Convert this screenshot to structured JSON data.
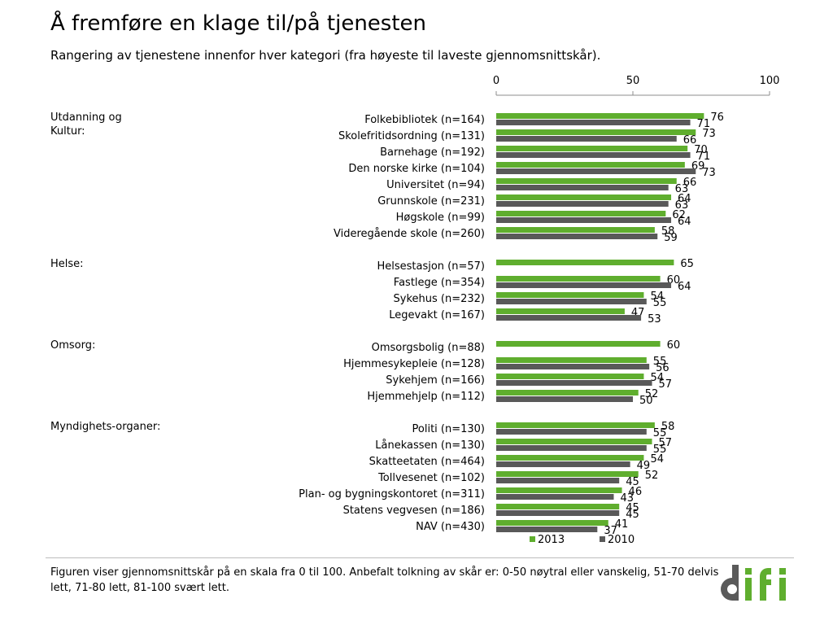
{
  "header": {
    "title": "Å fremføre en klage til/på tjenesten",
    "subtitle": "Rangering av tjenestene innenfor hver kategori (fra høyeste til laveste gjennomsnittskår)."
  },
  "footnote": "Figuren viser gjennomsnittskår på en skala fra 0 til 100. Anbefalt tolkning av skår er: 0-50 nøytral eller vanskelig, 51-70 delvis lett, 71-80 lett, 81-100 svært lett.",
  "logo": {
    "text": "difi",
    "colors": {
      "d": "#5a5a5a",
      "ifi": "#5fae2e"
    }
  },
  "colors": {
    "series_2013": "#5fae2e",
    "series_2010": "#595959"
  },
  "chart_data": {
    "type": "bar",
    "orientation": "horizontal",
    "xlim": [
      0,
      100
    ],
    "x_ticks": [
      0,
      50,
      100
    ],
    "grid": false,
    "legend": "bottom",
    "series": [
      {
        "name": "2013",
        "color": "#5fae2e"
      },
      {
        "name": "2010",
        "color": "#595959"
      }
    ],
    "groups": [
      {
        "label": "Utdanning og Kultur:",
        "items": [
          {
            "label": "Folkebibliotek (n=164)",
            "v2013": 76,
            "v2010": 71
          },
          {
            "label": "Skolefritidsordning (n=131)",
            "v2013": 73,
            "v2010": 66
          },
          {
            "label": "Barnehage (n=192)",
            "v2013": 70,
            "v2010": 71
          },
          {
            "label": "Den norske kirke (n=104)",
            "v2013": 69,
            "v2010": 73
          },
          {
            "label": "Universitet (n=94)",
            "v2013": 66,
            "v2010": 63
          },
          {
            "label": "Grunnskole (n=231)",
            "v2013": 64,
            "v2010": 63
          },
          {
            "label": "Høgskole (n=99)",
            "v2013": 62,
            "v2010": 64
          },
          {
            "label": "Videregående skole (n=260)",
            "v2013": 58,
            "v2010": 59
          }
        ]
      },
      {
        "label": "Helse:",
        "items": [
          {
            "label": "Helsestasjon (n=57)",
            "v2013": 65,
            "v2010": null
          },
          {
            "label": "Fastlege (n=354)",
            "v2013": 60,
            "v2010": 64
          },
          {
            "label": "Sykehus (n=232)",
            "v2013": 54,
            "v2010": 55
          },
          {
            "label": "Legevakt (n=167)",
            "v2013": 47,
            "v2010": 53
          }
        ]
      },
      {
        "label": "Omsorg:",
        "items": [
          {
            "label": "Omsorgsbolig (n=88)",
            "v2013": 60,
            "v2010": null
          },
          {
            "label": "Hjemmesykepleie (n=128)",
            "v2013": 55,
            "v2010": 56
          },
          {
            "label": "Sykehjem (n=166)",
            "v2013": 54,
            "v2010": 57
          },
          {
            "label": "Hjemmehjelp (n=112)",
            "v2013": 52,
            "v2010": 50
          }
        ]
      },
      {
        "label": "Myndighets-organer:",
        "items": [
          {
            "label": "Politi (n=130)",
            "v2013": 58,
            "v2010": 55
          },
          {
            "label": "Lånekassen (n=130)",
            "v2013": 57,
            "v2010": 55
          },
          {
            "label": "Skatteetaten (n=464)",
            "v2013": 54,
            "v2010": 49
          },
          {
            "label": "Tollvesenet (n=102)",
            "v2013": 52,
            "v2010": 45
          },
          {
            "label": "Plan- og bygningskontoret (n=311)",
            "v2013": 46,
            "v2010": 43
          },
          {
            "label": "Statens vegvesen (n=186)",
            "v2013": 45,
            "v2010": 45
          },
          {
            "label": "NAV (n=430)",
            "v2013": 41,
            "v2010": 37
          }
        ]
      }
    ]
  }
}
